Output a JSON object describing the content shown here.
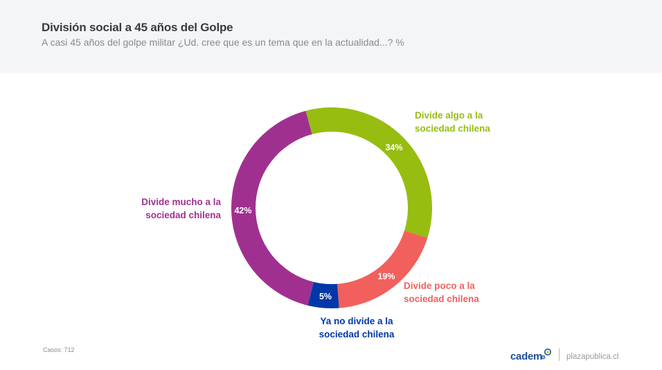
{
  "header": {
    "title": "División social a 45 años del Golpe",
    "subtitle": "A casi 45 años del golpe militar ¿Ud. cree que es un tema que en la actualidad...? %"
  },
  "chart_data": {
    "type": "pie",
    "variant": "donut",
    "title": "División social a 45 años del Golpe",
    "subtitle": "A casi 45 años del golpe militar ¿Ud. cree que es un tema que en la actualidad...? %",
    "unit": "%",
    "categories": [
      "Divide algo a la sociedad chilena",
      "Divide poco a la sociedad chilena",
      "Ya no divide a la sociedad chilena",
      "Divide mucho a la sociedad chilena"
    ],
    "values": [
      34,
      19,
      5,
      42
    ],
    "data_labels": [
      "34%",
      "19%",
      "5%",
      "42%"
    ],
    "label_lines": [
      [
        "Divide algo a la",
        "sociedad chilena"
      ],
      [
        "Divide poco a la",
        "sociedad chilena"
      ],
      [
        "Ya no divide a la",
        "sociedad chilena"
      ],
      [
        "Divide mucho a la",
        "sociedad chilena"
      ]
    ],
    "colors": [
      "#97bd10",
      "#f2605d",
      "#0038a8",
      "#a03090"
    ],
    "legend": "none (direct labels)"
  },
  "footer": {
    "cases": "Casos: 712",
    "brand": "cadem",
    "site": "plazapublica.cl"
  }
}
